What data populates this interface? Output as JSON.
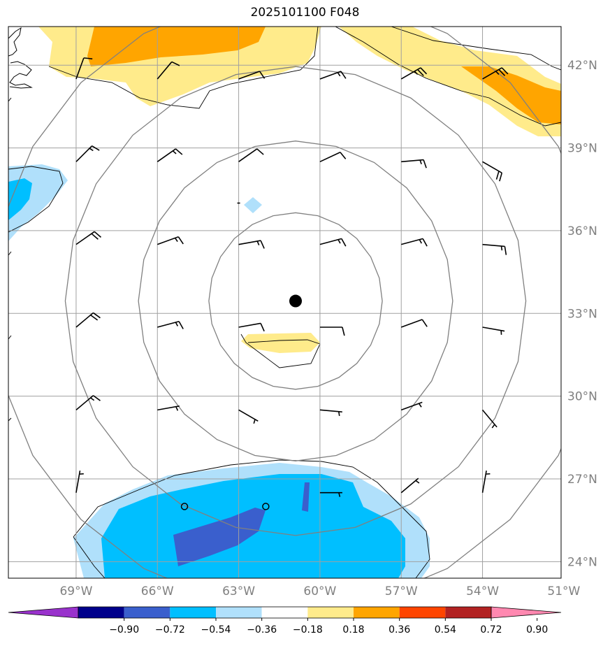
{
  "title": "2025101100 F048",
  "map": {
    "projection": "PlateCarree",
    "extent": {
      "lon_min": -71.5,
      "lon_max": -51.1,
      "lat_min": 23.4,
      "lat_max": 43.4
    },
    "lat_ticks": [
      {
        "value": 42,
        "label": "42°N"
      },
      {
        "value": 39,
        "label": "39°N"
      },
      {
        "value": 36,
        "label": "36°N"
      },
      {
        "value": 33,
        "label": "33°N"
      },
      {
        "value": 30,
        "label": "30°N"
      },
      {
        "value": 27,
        "label": "27°N"
      },
      {
        "value": 24,
        "label": "24°N"
      }
    ],
    "lon_ticks": [
      {
        "value": -69,
        "label": "69°W"
      },
      {
        "value": -66,
        "label": "66°W"
      },
      {
        "value": -63,
        "label": "63°W"
      },
      {
        "value": -60,
        "label": "60°W"
      },
      {
        "value": -57,
        "label": "57°W"
      },
      {
        "value": -54,
        "label": "54°W"
      },
      {
        "value": -51,
        "label": "51°W"
      }
    ],
    "center": {
      "lon": -60.9,
      "lat": 33.45
    },
    "range_rings_deg": [
      3.2,
      5.8,
      8.5,
      11.2
    ],
    "open_circles": [
      {
        "lon": -65.0,
        "lat": 26.0
      },
      {
        "lon": -62.0,
        "lat": 26.0
      }
    ]
  },
  "colorbar": {
    "levels": [
      "−0.90",
      "−0.72",
      "−0.54",
      "−0.36",
      "−0.18",
      "0.18",
      "0.36",
      "0.54",
      "0.72",
      "0.90"
    ],
    "colors": [
      "#9932cc",
      "#00008b",
      "#3a5fcd",
      "#00bfff",
      "#b0e0fb",
      "#ffffff",
      "#ffeb8b",
      "#ffa500",
      "#ff4500",
      "#b22222",
      "#ff88b0"
    ]
  },
  "colors": {
    "yellow": "#ffeb8b",
    "orange": "#ffa500",
    "light_blue": "#b0e0fb",
    "cyan": "#00bfff",
    "royal_blue": "#3a5fcd",
    "grid": "#a0a0a0",
    "ring": "#808080"
  },
  "wind_barbs": [
    {
      "lon": -69,
      "lat": 41.5,
      "dir": 200,
      "speed": 10
    },
    {
      "lon": -66,
      "lat": 41.5,
      "dir": 220,
      "speed": 10
    },
    {
      "lon": -63,
      "lat": 41.5,
      "dir": 250,
      "speed": 10
    },
    {
      "lon": -60,
      "lat": 41.5,
      "dir": 250,
      "speed": 15
    },
    {
      "lon": -57,
      "lat": 41.5,
      "dir": 240,
      "speed": 25
    },
    {
      "lon": -54,
      "lat": 41.5,
      "dir": 240,
      "speed": 25
    },
    {
      "lon": -69,
      "lat": 38.5,
      "dir": 225,
      "speed": 15
    },
    {
      "lon": -66,
      "lat": 38.5,
      "dir": 235,
      "speed": 15
    },
    {
      "lon": -63,
      "lat": 38.5,
      "dir": 235,
      "speed": 10
    },
    {
      "lon": -60,
      "lat": 38.5,
      "dir": 245,
      "speed": 10
    },
    {
      "lon": -57,
      "lat": 38.5,
      "dir": 265,
      "speed": 15
    },
    {
      "lon": -54,
      "lat": 38.5,
      "dir": 300,
      "speed": 20
    },
    {
      "lon": -63,
      "lat": 37.0,
      "dir": 270,
      "speed": 0
    },
    {
      "lon": -69,
      "lat": 35.5,
      "dir": 235,
      "speed": 20
    },
    {
      "lon": -66,
      "lat": 35.5,
      "dir": 250,
      "speed": 15
    },
    {
      "lon": -63,
      "lat": 35.5,
      "dir": 260,
      "speed": 15
    },
    {
      "lon": -60,
      "lat": 35.5,
      "dir": 255,
      "speed": 15
    },
    {
      "lon": -57,
      "lat": 35.5,
      "dir": 255,
      "speed": 15
    },
    {
      "lon": -54,
      "lat": 35.5,
      "dir": 275,
      "speed": 15
    },
    {
      "lon": -69,
      "lat": 32.5,
      "dir": 230,
      "speed": 20
    },
    {
      "lon": -66,
      "lat": 32.5,
      "dir": 255,
      "speed": 15
    },
    {
      "lon": -63,
      "lat": 32.5,
      "dir": 260,
      "speed": 10
    },
    {
      "lon": -60,
      "lat": 32.5,
      "dir": 270,
      "speed": 10
    },
    {
      "lon": -57,
      "lat": 32.5,
      "dir": 250,
      "speed": 10
    },
    {
      "lon": -54,
      "lat": 32.5,
      "dir": 280,
      "speed": 5
    },
    {
      "lon": -69,
      "lat": 29.5,
      "dir": 230,
      "speed": 15
    },
    {
      "lon": -66,
      "lat": 29.5,
      "dir": 260,
      "speed": 5
    },
    {
      "lon": -63,
      "lat": 29.5,
      "dir": 300,
      "speed": 5
    },
    {
      "lon": -60,
      "lat": 29.5,
      "dir": 275,
      "speed": 5
    },
    {
      "lon": -57,
      "lat": 29.5,
      "dir": 250,
      "speed": 5
    },
    {
      "lon": -54,
      "lat": 29.5,
      "dir": 320,
      "speed": 5
    },
    {
      "lon": -69,
      "lat": 26.5,
      "dir": 190,
      "speed": 5
    },
    {
      "lon": -60,
      "lat": 26.5,
      "dir": 270,
      "speed": 5
    },
    {
      "lon": -57,
      "lat": 26.5,
      "dir": 230,
      "speed": 5
    },
    {
      "lon": -54,
      "lat": 26.5,
      "dir": 190,
      "speed": 5
    }
  ]
}
